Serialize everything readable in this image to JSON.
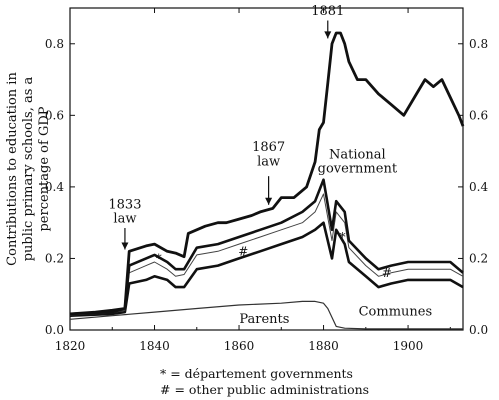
{
  "chart_data": {
    "type": "line",
    "ylabel": "Contributions to education in public primary schools, as a percentage of GDP",
    "xlim": [
      1820,
      1913
    ],
    "ylim": [
      0,
      0.9
    ],
    "x_ticks": [
      "1820",
      "1840",
      "1860",
      "1880",
      "1900"
    ],
    "y_ticks": [
      "0.0",
      "0.2",
      "0.4",
      "0.6",
      "0.8"
    ],
    "series": [
      {
        "name": "National government",
        "x": [
          1820,
          1826,
          1830,
          1833,
          1834,
          1838,
          1840,
          1843,
          1845,
          1847,
          1848,
          1852,
          1855,
          1857,
          1860,
          1863,
          1865,
          1868,
          1870,
          1873,
          1876,
          1878,
          1879,
          1880,
          1881,
          1882,
          1883,
          1884,
          1885,
          1886,
          1888,
          1890,
          1893,
          1896,
          1899,
          1902,
          1904,
          1906,
          1908,
          1910,
          1912,
          1913
        ],
        "y": [
          0.045,
          0.05,
          0.055,
          0.06,
          0.22,
          0.235,
          0.24,
          0.22,
          0.215,
          0.205,
          0.27,
          0.29,
          0.3,
          0.3,
          0.31,
          0.32,
          0.33,
          0.34,
          0.37,
          0.37,
          0.4,
          0.47,
          0.56,
          0.58,
          0.69,
          0.8,
          0.83,
          0.83,
          0.8,
          0.75,
          0.7,
          0.7,
          0.66,
          0.63,
          0.6,
          0.66,
          0.7,
          0.68,
          0.7,
          0.65,
          0.6,
          0.57
        ]
      },
      {
        "name": "Communes",
        "x": [
          1820,
          1830,
          1833,
          1834,
          1838,
          1840,
          1843,
          1845,
          1847,
          1850,
          1855,
          1860,
          1865,
          1870,
          1875,
          1878,
          1880,
          1882,
          1883,
          1885,
          1886,
          1890,
          1893,
          1896,
          1900,
          1905,
          1910,
          1913
        ],
        "y": [
          0.04,
          0.045,
          0.05,
          0.13,
          0.14,
          0.15,
          0.14,
          0.12,
          0.12,
          0.17,
          0.18,
          0.2,
          0.22,
          0.24,
          0.26,
          0.28,
          0.3,
          0.2,
          0.28,
          0.24,
          0.19,
          0.15,
          0.12,
          0.13,
          0.14,
          0.14,
          0.14,
          0.12
        ]
      },
      {
        "name": "",
        "x": [
          1820,
          1830,
          1833,
          1834,
          1838,
          1840,
          1843,
          1845,
          1847,
          1850,
          1855,
          1860,
          1865,
          1870,
          1875,
          1878,
          1880,
          1882,
          1883,
          1885,
          1886,
          1890,
          1893,
          1896,
          1900,
          1905,
          1910,
          1913
        ],
        "y": [
          0.042,
          0.048,
          0.055,
          0.16,
          0.18,
          0.19,
          0.17,
          0.15,
          0.155,
          0.21,
          0.22,
          0.24,
          0.26,
          0.28,
          0.3,
          0.33,
          0.38,
          0.25,
          0.33,
          0.3,
          0.23,
          0.18,
          0.15,
          0.16,
          0.17,
          0.17,
          0.17,
          0.15
        ]
      },
      {
        "name": "",
        "x": [
          1820,
          1830,
          1833,
          1834,
          1838,
          1840,
          1843,
          1845,
          1847,
          1850,
          1855,
          1860,
          1865,
          1870,
          1875,
          1878,
          1880,
          1882,
          1883,
          1885,
          1886,
          1890,
          1893,
          1896,
          1900,
          1905,
          1910,
          1913
        ],
        "y": [
          0.045,
          0.05,
          0.06,
          0.18,
          0.2,
          0.21,
          0.19,
          0.17,
          0.17,
          0.23,
          0.24,
          0.26,
          0.28,
          0.3,
          0.33,
          0.36,
          0.42,
          0.28,
          0.36,
          0.33,
          0.25,
          0.2,
          0.17,
          0.18,
          0.19,
          0.19,
          0.19,
          0.16
        ]
      },
      {
        "name": "Parents",
        "x": [
          1820,
          1830,
          1840,
          1850,
          1860,
          1870,
          1875,
          1878,
          1880,
          1881,
          1883,
          1885,
          1890,
          1900,
          1913
        ],
        "y": [
          0.03,
          0.04,
          0.05,
          0.06,
          0.07,
          0.075,
          0.08,
          0.08,
          0.075,
          0.06,
          0.01,
          0.005,
          0.003,
          0.003,
          0.003
        ]
      }
    ],
    "markers": [
      {
        "symbol": "*",
        "x": 1841,
        "y": 0.2
      },
      {
        "symbol": "#",
        "x": 1861,
        "y": 0.22
      },
      {
        "symbol": "*",
        "x": 1884.5,
        "y": 0.26
      },
      {
        "symbol": "#",
        "x": 1895,
        "y": 0.16
      }
    ],
    "annotations": [
      {
        "text": "1833",
        "x": 1833,
        "y": 0.34
      },
      {
        "text": "law",
        "x": 1833,
        "y": 0.3
      },
      {
        "text": "1867",
        "x": 1867,
        "y": 0.5
      },
      {
        "text": "law",
        "x": 1867,
        "y": 0.46
      },
      {
        "text": "1881",
        "x": 1881,
        "y": 0.88
      },
      {
        "text": "National",
        "x": 1888,
        "y": 0.48
      },
      {
        "text": "government",
        "x": 1888,
        "y": 0.44
      },
      {
        "text": "Communes",
        "x": 1897,
        "y": 0.04
      },
      {
        "text": "Parents",
        "x": 1866,
        "y": 0.02
      }
    ],
    "notes": [
      "* = département governments",
      "# = other public administrations"
    ],
    "grid": false
  }
}
